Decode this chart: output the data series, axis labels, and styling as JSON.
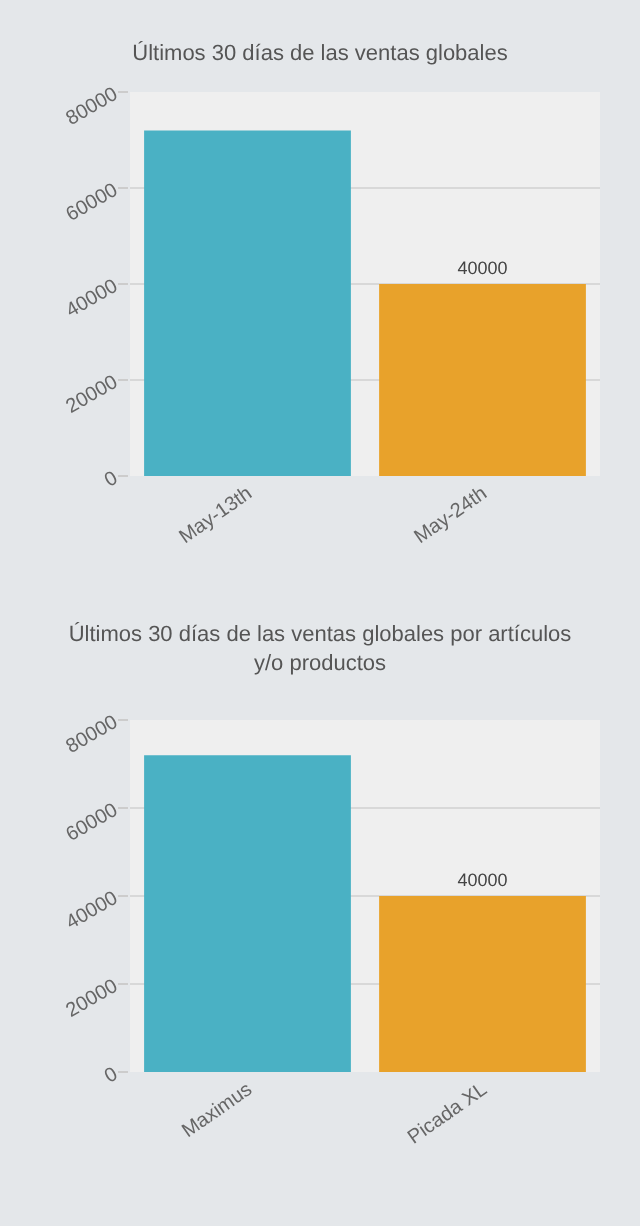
{
  "chart_data": [
    {
      "type": "bar",
      "title": "Últimos 30 días de las ventas globales",
      "categories": [
        "May-13th",
        "May-24th"
      ],
      "colors": [
        "#4ab1c4",
        "#e8a22b"
      ],
      "values": [
        72000,
        40000
      ],
      "value_labels": [
        null,
        "40000"
      ],
      "ylim": [
        0,
        80000
      ],
      "yticks": [
        0,
        20000,
        40000,
        60000,
        80000
      ],
      "grid": "y"
    },
    {
      "type": "bar",
      "title": "Últimos 30 días de las ventas globales por artículos\ny/o productos",
      "categories": [
        "Maximus",
        "Picada XL"
      ],
      "colors": [
        "#4ab1c4",
        "#e8a22b"
      ],
      "values": [
        72000,
        40000
      ],
      "value_labels": [
        null,
        "40000"
      ],
      "ylim": [
        0,
        80000
      ],
      "yticks": [
        0,
        20000,
        40000,
        60000,
        80000
      ],
      "grid": "y"
    }
  ]
}
